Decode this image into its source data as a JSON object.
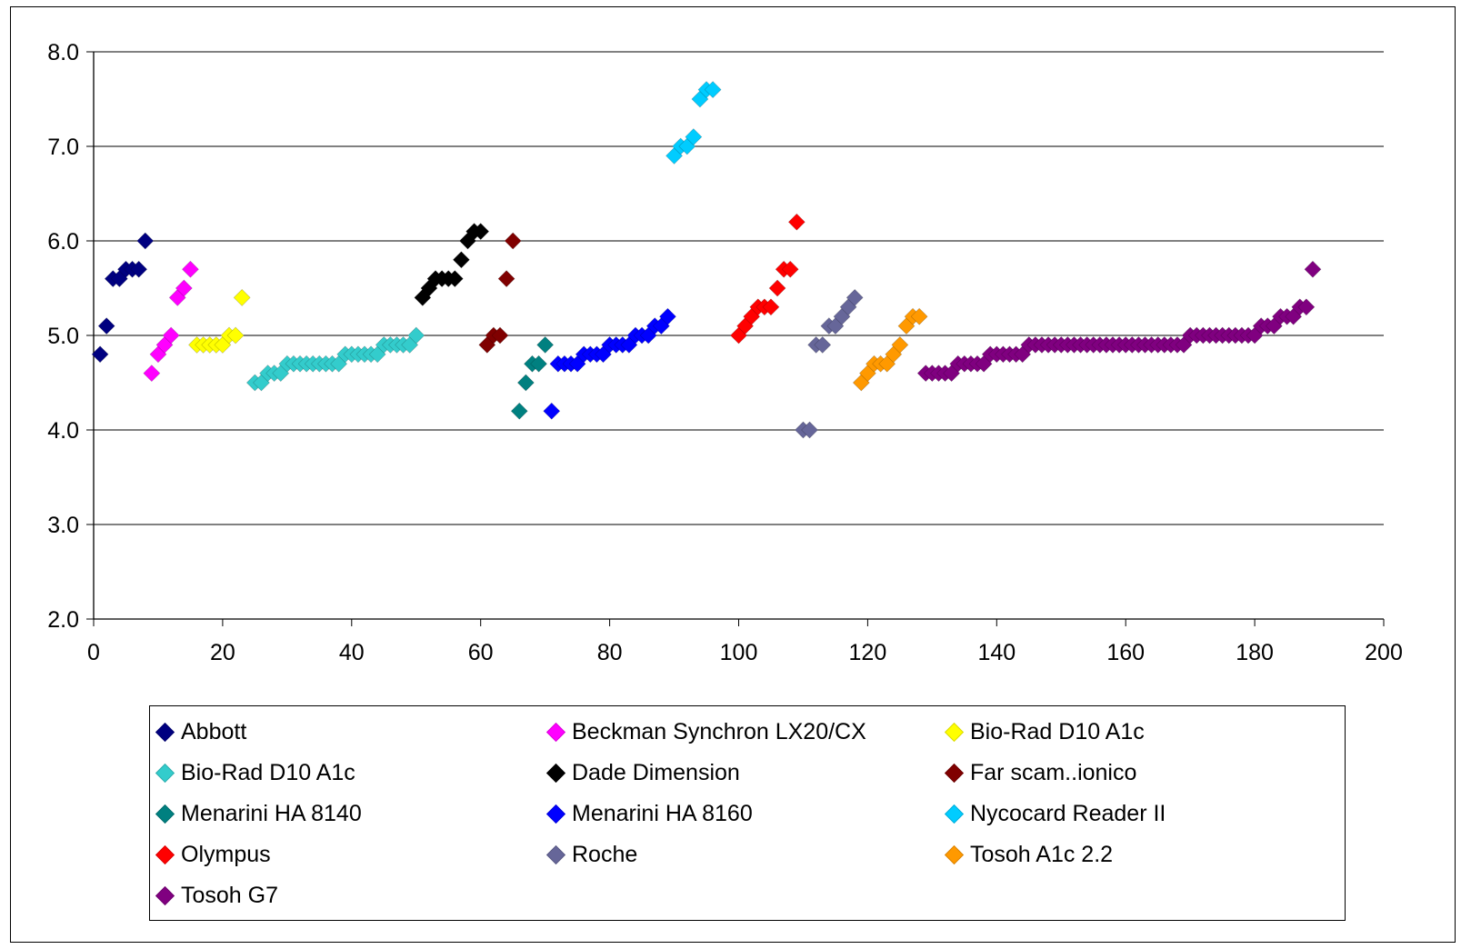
{
  "chart_data": {
    "type": "scatter",
    "title": "",
    "xlabel": "",
    "ylabel": "",
    "xlim": [
      0,
      200
    ],
    "ylim": [
      2.0,
      8.0
    ],
    "x_ticks": [
      "0",
      "20",
      "40",
      "60",
      "80",
      "100",
      "120",
      "140",
      "160",
      "180",
      "200"
    ],
    "y_ticks": [
      "2.0",
      "3.0",
      "4.0",
      "5.0",
      "6.0",
      "7.0",
      "8.0"
    ],
    "grid": "horizontal major gridlines",
    "legend_position": "bottom",
    "marker": "diamond",
    "series": [
      {
        "name": "Abbott",
        "color": "#000080",
        "x": [
          1,
          2,
          3,
          4,
          5,
          6,
          7,
          8
        ],
        "y": [
          4.8,
          5.1,
          5.6,
          5.6,
          5.7,
          5.7,
          5.7,
          6.0
        ]
      },
      {
        "name": "Beckman Synchron LX20/CX",
        "color": "#FF00FF",
        "x": [
          9,
          10,
          11,
          12,
          13,
          14,
          15
        ],
        "y": [
          4.6,
          4.8,
          4.9,
          5.0,
          5.4,
          5.5,
          5.7
        ]
      },
      {
        "name": "Bio-Rad D10 A1c",
        "color": "#FFFF00",
        "x": [
          16,
          17,
          18,
          19,
          20,
          21,
          22,
          23
        ],
        "y": [
          4.9,
          4.9,
          4.9,
          4.9,
          4.9,
          5.0,
          5.0,
          5.4
        ]
      },
      {
        "name": "Bio-Rad D10 A1c",
        "color": "#33CCCC",
        "x": [
          25,
          26,
          27,
          28,
          29,
          30,
          31,
          32,
          33,
          34,
          35,
          36,
          37,
          38,
          39,
          40,
          41,
          42,
          43,
          44,
          45,
          46,
          47,
          48,
          49,
          50
        ],
        "y": [
          4.5,
          4.5,
          4.6,
          4.6,
          4.6,
          4.7,
          4.7,
          4.7,
          4.7,
          4.7,
          4.7,
          4.7,
          4.7,
          4.7,
          4.8,
          4.8,
          4.8,
          4.8,
          4.8,
          4.8,
          4.9,
          4.9,
          4.9,
          4.9,
          4.9,
          5.0
        ]
      },
      {
        "name": "Dade Dimension",
        "color": "#000000",
        "x": [
          51,
          52,
          53,
          54,
          55,
          56,
          57,
          58,
          59,
          60
        ],
        "y": [
          5.4,
          5.5,
          5.6,
          5.6,
          5.6,
          5.6,
          5.8,
          6.0,
          6.1,
          6.1
        ]
      },
      {
        "name": "Far scam..ionico",
        "color": "#800000",
        "x": [
          61,
          62,
          63,
          64,
          65
        ],
        "y": [
          4.9,
          5.0,
          5.0,
          5.6,
          6.0
        ]
      },
      {
        "name": "Menarini HA 8140",
        "color": "#008080",
        "x": [
          66,
          67,
          68,
          69,
          70
        ],
        "y": [
          4.2,
          4.5,
          4.7,
          4.7,
          4.9
        ]
      },
      {
        "name": "Menarini HA 8160",
        "color": "#0000FF",
        "x": [
          71,
          72,
          73,
          74,
          75,
          76,
          77,
          78,
          79,
          80,
          81,
          82,
          83,
          84,
          85,
          86,
          87,
          88,
          89
        ],
        "y": [
          4.2,
          4.7,
          4.7,
          4.7,
          4.7,
          4.8,
          4.8,
          4.8,
          4.8,
          4.9,
          4.9,
          4.9,
          4.9,
          5.0,
          5.0,
          5.0,
          5.1,
          5.1,
          5.2
        ]
      },
      {
        "name": "Nycocard Reader II",
        "color": "#00CCFF",
        "x": [
          90,
          91,
          92,
          93,
          94,
          95,
          96
        ],
        "y": [
          6.9,
          7.0,
          7.0,
          7.1,
          7.5,
          7.6,
          7.6
        ]
      },
      {
        "name": "Olympus",
        "color": "#FF0000",
        "x": [
          100,
          101,
          102,
          103,
          104,
          105,
          106,
          107,
          108,
          109
        ],
        "y": [
          5.0,
          5.1,
          5.2,
          5.3,
          5.3,
          5.3,
          5.5,
          5.7,
          5.7,
          6.2
        ]
      },
      {
        "name": "Roche",
        "color": "#666699",
        "x": [
          110,
          111,
          112,
          113,
          114,
          115,
          116,
          117,
          118
        ],
        "y": [
          4.0,
          4.0,
          4.9,
          4.9,
          5.1,
          5.1,
          5.2,
          5.3,
          5.4
        ]
      },
      {
        "name": "Tosoh A1c 2.2",
        "color": "#FF9900",
        "x": [
          119,
          120,
          121,
          122,
          123,
          124,
          125,
          126,
          127,
          128
        ],
        "y": [
          4.5,
          4.6,
          4.7,
          4.7,
          4.7,
          4.8,
          4.9,
          5.1,
          5.2,
          5.2
        ]
      },
      {
        "name": "Tosoh G7",
        "color": "#800080",
        "x": [
          129,
          130,
          131,
          132,
          133,
          134,
          135,
          136,
          137,
          138,
          139,
          140,
          141,
          142,
          143,
          144,
          145,
          146,
          147,
          148,
          149,
          150,
          151,
          152,
          153,
          154,
          155,
          156,
          157,
          158,
          159,
          160,
          161,
          162,
          163,
          164,
          165,
          166,
          167,
          168,
          169,
          170,
          171,
          172,
          173,
          174,
          175,
          176,
          177,
          178,
          179,
          180,
          181,
          182,
          183,
          184,
          185,
          186,
          187,
          188,
          189
        ],
        "y": [
          4.6,
          4.6,
          4.6,
          4.6,
          4.6,
          4.7,
          4.7,
          4.7,
          4.7,
          4.7,
          4.8,
          4.8,
          4.8,
          4.8,
          4.8,
          4.8,
          4.9,
          4.9,
          4.9,
          4.9,
          4.9,
          4.9,
          4.9,
          4.9,
          4.9,
          4.9,
          4.9,
          4.9,
          4.9,
          4.9,
          4.9,
          4.9,
          4.9,
          4.9,
          4.9,
          4.9,
          4.9,
          4.9,
          4.9,
          4.9,
          4.9,
          5.0,
          5.0,
          5.0,
          5.0,
          5.0,
          5.0,
          5.0,
          5.0,
          5.0,
          5.0,
          5.0,
          5.1,
          5.1,
          5.1,
          5.2,
          5.2,
          5.2,
          5.3,
          5.3,
          5.7
        ]
      }
    ]
  }
}
